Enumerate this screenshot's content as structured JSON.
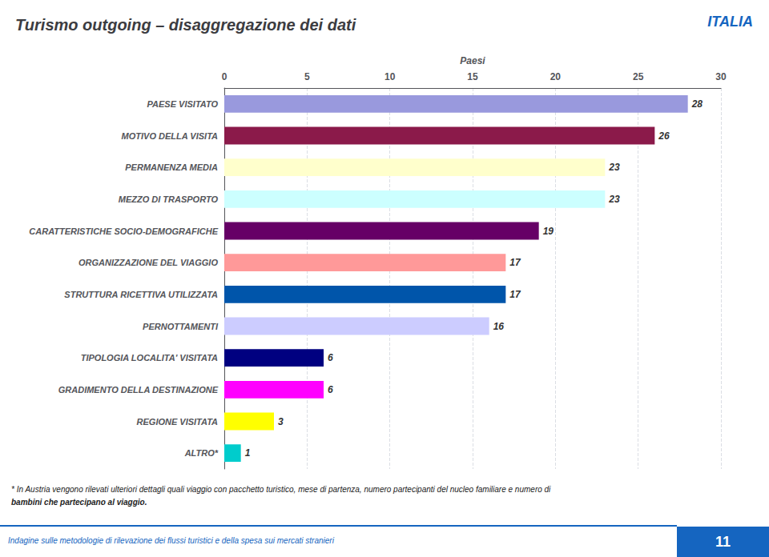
{
  "chart_data": {
    "type": "bar",
    "orientation": "horizontal",
    "title": "Turismo outgoing – disaggregazione dei dati",
    "xlabel": "Paesi",
    "categories": [
      "PAESE VISITATO",
      "MOTIVO DELLA VISITA",
      "PERMANENZA MEDIA",
      "MEZZO DI TRASPORTO",
      "CARATTERISTICHE SOCIO-DEMOGRAFICHE",
      "ORGANIZZAZIONE DEL VIAGGIO",
      "STRUTTURA RICETTIVA UTILIZZATA",
      "PERNOTTAMENTI",
      "TIPOLOGIA LOCALITA' VISITATA",
      "GRADIMENTO DELLA DESTINAZIONE",
      "REGIONE VISITATA",
      "ALTRO*"
    ],
    "values": [
      28,
      26,
      23,
      23,
      19,
      17,
      17,
      16,
      6,
      6,
      3,
      1
    ],
    "colors": [
      "#9999DD",
      "#8B1A4A",
      "#FFFFCC",
      "#CCFFFF",
      "#660066",
      "#FF9999",
      "#0055AA",
      "#CCCCFF",
      "#000080",
      "#FF00FF",
      "#FFFF00",
      "#00CCCC"
    ],
    "xlim": [
      0,
      30
    ],
    "xticks": [
      0,
      5,
      10,
      15,
      20,
      25,
      30
    ],
    "grid": true,
    "data_labels": true,
    "annotations": [
      "ITALIA",
      "* In Austria vengono rilevati ulteriori dettagli quali viaggio con pacchetto turistico, mese di partenza, numero partecipanti del nucleo familiare e numero di",
      "bambini che partecipano al viaggio.",
      "Indagine sulle metodologie di rilevazione dei flussi turistici e della spesa sui mercati stranieri",
      "11"
    ]
  }
}
